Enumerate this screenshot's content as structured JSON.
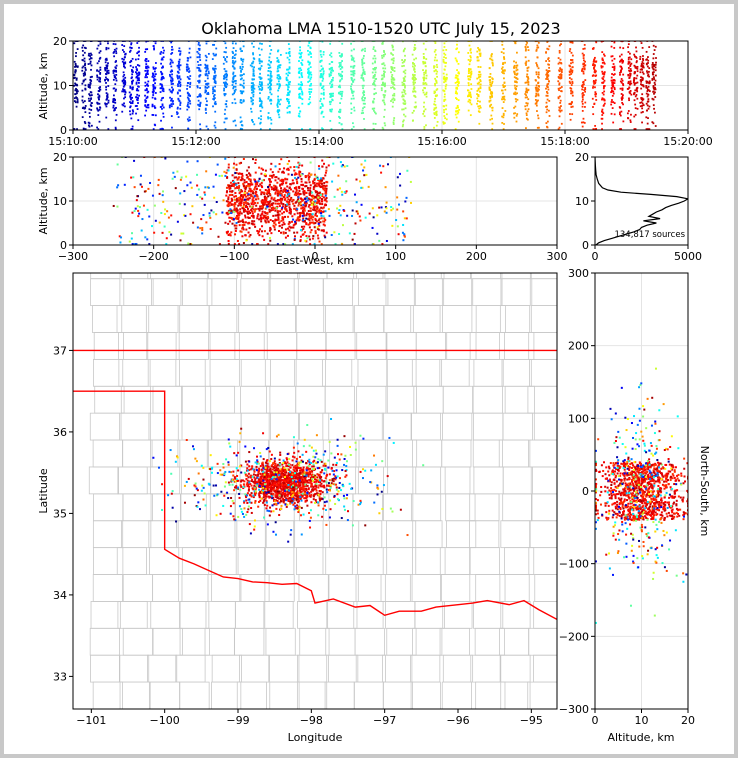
{
  "title": "Oklahoma LMA 1510-1520 UTC July 15, 2023",
  "source_count_label": "134,817 sources",
  "colormap": [
    "#00007f",
    "#0000ff",
    "#007fff",
    "#00ffff",
    "#7fff7f",
    "#ffff00",
    "#ff7f00",
    "#ff0000",
    "#7f0000"
  ],
  "state_border_color": "#ff0000",
  "county_line_color": "#c8c8c8",
  "chart_data": [
    {
      "id": "time-height",
      "type": "scatter",
      "xlabel": "",
      "ylabel": "Altitude, km",
      "xlim": [
        "15:10:00",
        "15:20:00"
      ],
      "ylim": [
        0,
        20
      ],
      "x_ticks": [
        "15:10:00",
        "15:12:00",
        "15:14:00",
        "15:16:00",
        "15:18:00",
        "15:20:00"
      ],
      "y_ticks": [
        "0",
        "10",
        "20"
      ],
      "flash_minutes": [
        0.05,
        0.18,
        0.28,
        0.42,
        0.55,
        0.68,
        0.83,
        0.95,
        1.05,
        1.2,
        1.32,
        1.45,
        1.6,
        1.72,
        1.88,
        2.05,
        2.18,
        2.3,
        2.48,
        2.62,
        2.75,
        2.92,
        3.05,
        3.2,
        3.35,
        3.5,
        3.7,
        3.85,
        4.05,
        4.2,
        4.35,
        4.55,
        4.72,
        4.9,
        5.05,
        5.2,
        5.38,
        5.55,
        5.72,
        5.9,
        6.05,
        6.25,
        6.45,
        6.6,
        6.8,
        7.0,
        7.2,
        7.38,
        7.55,
        7.72,
        7.92,
        8.1,
        8.3,
        8.48,
        8.62,
        8.78,
        8.92,
        9.05,
        9.15,
        9.25,
        9.35,
        9.45
      ]
    },
    {
      "id": "east-west-altitude",
      "type": "scatter",
      "xlabel": "East-West, km",
      "ylabel": "Altitude, km",
      "xlim": [
        -300,
        300
      ],
      "ylim": [
        0,
        20
      ],
      "x_ticks": [
        "−300",
        "−200",
        "−100",
        "0",
        "100",
        "200",
        "300"
      ],
      "y_ticks": [
        "0",
        "10",
        "20"
      ],
      "core_x_range": [
        -110,
        15
      ]
    },
    {
      "id": "altitude-histogram",
      "type": "line",
      "xlabel": "",
      "ylabel": "",
      "xlim": [
        0,
        5000
      ],
      "ylim": [
        0,
        20
      ],
      "x_ticks": [
        "0",
        "5000"
      ],
      "y_ticks": [
        "0",
        "10",
        "20"
      ],
      "altitude_km": [
        0,
        0.5,
        1,
        1.5,
        2,
        2.5,
        3,
        3.5,
        4,
        4.5,
        5,
        5.5,
        6,
        6.5,
        7,
        7.5,
        8,
        8.5,
        9,
        9.5,
        10,
        10.5,
        11,
        11.5,
        12,
        12.5,
        13,
        14,
        15,
        16,
        17,
        18,
        19,
        20
      ],
      "counts": [
        50,
        200,
        500,
        900,
        1300,
        1700,
        2100,
        2400,
        2500,
        2800,
        3300,
        2600,
        3500,
        2900,
        3100,
        3300,
        3600,
        3800,
        4100,
        4500,
        4800,
        5000,
        4400,
        3000,
        1400,
        700,
        400,
        200,
        120,
        60,
        40,
        20,
        10,
        0
      ]
    },
    {
      "id": "plan-view",
      "type": "scatter",
      "xlabel": "Longitude",
      "ylabel": "Latitude",
      "xlim": [
        -101.25,
        -94.65
      ],
      "ylim": [
        32.6,
        37.95
      ],
      "x_ticks": [
        "−101",
        "−100",
        "−99",
        "−98",
        "−97",
        "−96",
        "−95"
      ],
      "y_ticks": [
        "33",
        "34",
        "35",
        "36",
        "37"
      ],
      "core_center": [
        -98.35,
        35.38
      ]
    },
    {
      "id": "north-south-altitude",
      "type": "scatter",
      "xlabel": "Altitude, km",
      "ylabel": "North-South, km",
      "xlim": [
        0,
        20
      ],
      "ylim": [
        -300,
        300
      ],
      "x_ticks": [
        "0",
        "10",
        "20"
      ],
      "y_ticks": [
        "−300",
        "−200",
        "−100",
        "0",
        "100",
        "200",
        "300"
      ],
      "core_y_range": [
        -40,
        40
      ]
    }
  ]
}
